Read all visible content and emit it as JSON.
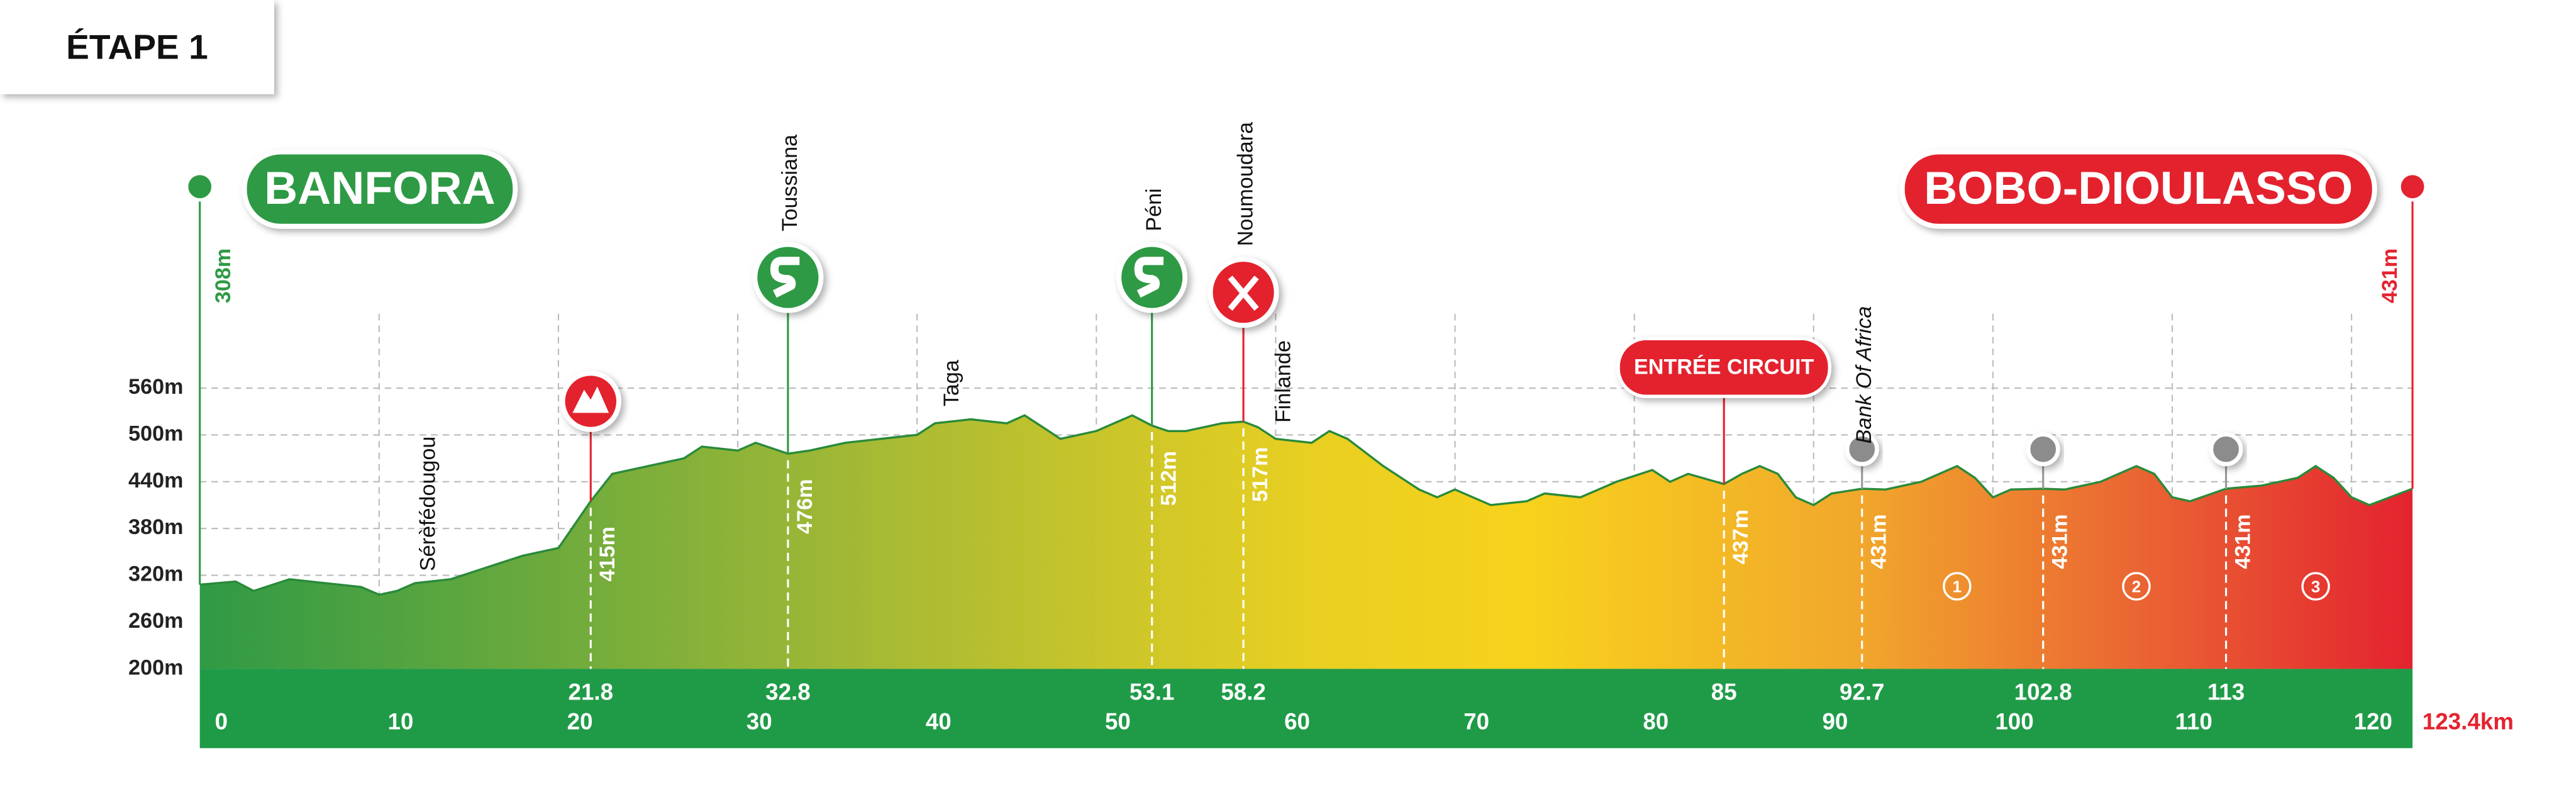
{
  "chart_data": {
    "type": "area",
    "title": "ÉTAPE 1",
    "start": {
      "name": "BANFORA",
      "elevation": 308,
      "elevation_label": "308m"
    },
    "finish": {
      "name": "BOBO-DIOULASSO",
      "elevation": 431,
      "elevation_label": "431m"
    },
    "x": [
      0,
      2,
      3,
      5,
      7,
      9,
      10,
      11,
      12,
      14,
      16,
      18,
      20,
      21.8,
      23,
      25,
      27,
      28,
      30,
      31,
      32.8,
      34,
      36,
      38,
      40,
      41,
      43,
      45,
      46,
      47,
      48,
      50,
      52,
      53.1,
      54,
      55,
      57,
      58.2,
      59,
      60,
      62,
      63,
      64,
      66,
      68,
      69,
      70,
      72,
      74,
      75,
      77,
      79,
      81,
      82,
      83,
      85,
      86,
      87,
      88,
      89,
      90,
      91,
      92.7,
      94,
      96,
      98,
      99,
      100,
      101,
      102.8,
      104,
      106,
      108,
      109,
      110,
      111,
      113,
      115,
      117,
      118,
      119,
      120,
      121,
      123.4
    ],
    "values": [
      308,
      312,
      300,
      315,
      310,
      305,
      295,
      300,
      310,
      315,
      330,
      345,
      355,
      415,
      450,
      460,
      470,
      485,
      480,
      490,
      476,
      480,
      490,
      495,
      500,
      515,
      520,
      515,
      525,
      510,
      495,
      505,
      525,
      512,
      505,
      505,
      515,
      517,
      510,
      495,
      490,
      505,
      495,
      460,
      430,
      420,
      430,
      410,
      415,
      425,
      420,
      440,
      455,
      440,
      450,
      437,
      450,
      460,
      450,
      420,
      410,
      425,
      431,
      430,
      440,
      460,
      445,
      420,
      430,
      431,
      430,
      440,
      460,
      450,
      420,
      415,
      431,
      435,
      445,
      460,
      445,
      420,
      410,
      431
    ],
    "xlim": [
      0,
      123.4
    ],
    "ylim": [
      200,
      560
    ],
    "xticks": [
      0,
      10,
      20,
      30,
      40,
      50,
      60,
      70,
      80,
      90,
      100,
      110,
      120,
      {
        "value": 123.4,
        "label": "123.4km"
      }
    ],
    "yticks": [
      {
        "value": 560,
        "label": "560m"
      },
      {
        "value": 500,
        "label": "500m"
      },
      {
        "value": 440,
        "label": "440m"
      },
      {
        "value": 380,
        "label": "380m"
      },
      {
        "value": 320,
        "label": "320m"
      },
      {
        "value": 260,
        "label": "260m"
      },
      {
        "value": 200,
        "label": "200m"
      }
    ],
    "grid": true,
    "annotations": [
      {
        "km": 21.8,
        "elevation": 415,
        "elevation_label": "415m",
        "icon": "climb"
      },
      {
        "km": 32.8,
        "elevation": 476,
        "elevation_label": "476m",
        "icon": "sprint",
        "place": "Toussiana"
      },
      {
        "km": 53.1,
        "elevation": 512,
        "elevation_label": "512m",
        "icon": "sprint",
        "place": "Péni"
      },
      {
        "km": 58.2,
        "elevation": 517,
        "elevation_label": "517m",
        "icon": "food",
        "place": "Noumoudara"
      },
      {
        "km": 85,
        "elevation": 437,
        "elevation_label": "437m",
        "icon": "circuit",
        "place": "ENTRÉE CIRCUIT"
      },
      {
        "km": 92.7,
        "elevation": 431,
        "elevation_label": "431m",
        "icon": "lap",
        "place": "Bank Of Africa"
      },
      {
        "km": 102.8,
        "elevation": 431,
        "elevation_label": "431m",
        "icon": "lap"
      },
      {
        "km": 113,
        "elevation": 431,
        "elevation_label": "431m",
        "icon": "lap"
      }
    ],
    "places": [
      "Sérèfédougou",
      "Taga",
      "Finlande"
    ],
    "laps": [
      "1",
      "2",
      "3"
    ]
  }
}
